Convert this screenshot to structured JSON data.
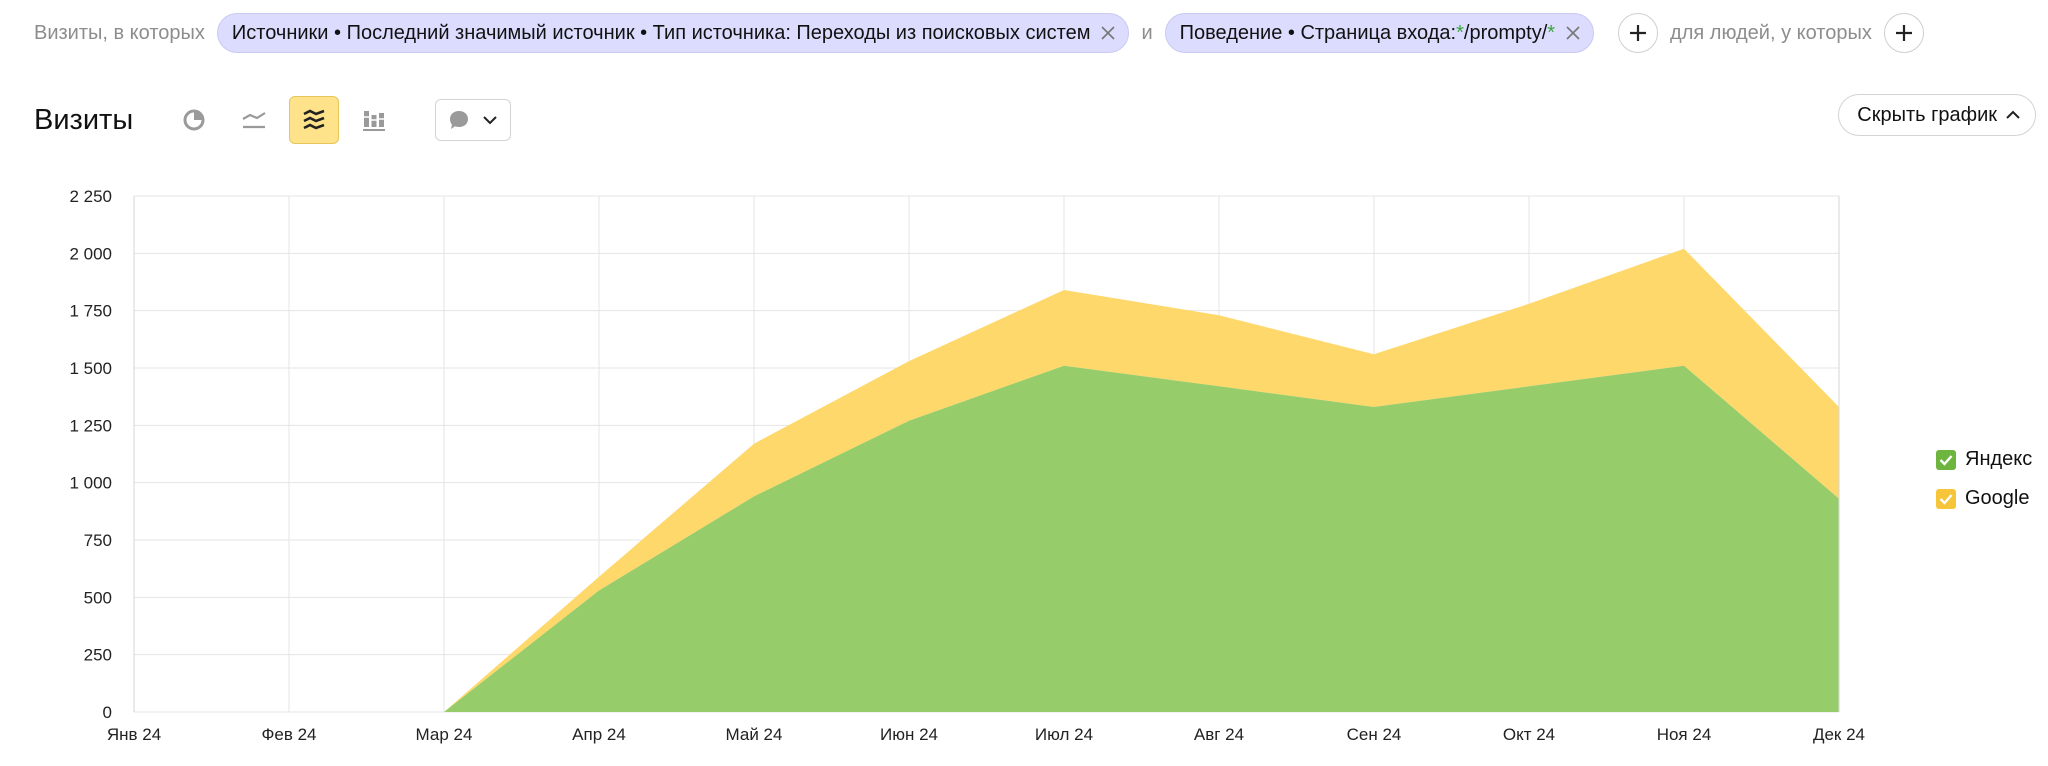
{
  "filters": {
    "prefix": "Визиты, в которых",
    "chip1_text": "Источники • Последний значимый источник • Тип источника: Переходы из поисковых систем",
    "joiner": "и",
    "chip2_prefix": "Поведение • Страница входа: ",
    "chip2_star1": "*",
    "chip2_path": "/prompty/",
    "chip2_star2": "*",
    "people_label": "для людей, у которых"
  },
  "toolbar": {
    "title": "Визиты",
    "hide_chart_label": "Скрыть график"
  },
  "colors": {
    "yandex": "#96cc69",
    "google": "#ffd86b",
    "yandex_check": "#6db53e",
    "google_check": "#f6c53a",
    "grid": "#e5e5e5"
  },
  "chart_data": {
    "type": "area",
    "stacked": true,
    "categories": [
      "Янв 24",
      "Фев 24",
      "Мар 24",
      "Апр 24",
      "Май 24",
      "Июн 24",
      "Июл 24",
      "Авг 24",
      "Сен 24",
      "Окт 24",
      "Ноя 24",
      "Дек 24"
    ],
    "series": [
      {
        "name": "Яндекс",
        "values": [
          0,
          0,
          0,
          530,
          940,
          1270,
          1510,
          1420,
          1330,
          1420,
          1510,
          930
        ]
      },
      {
        "name": "Google",
        "values": [
          0,
          0,
          0,
          60,
          230,
          260,
          330,
          310,
          230,
          360,
          510,
          400
        ]
      }
    ],
    "ylim": [
      0,
      2250
    ],
    "yticks": [
      0,
      250,
      500,
      750,
      1000,
      1250,
      1500,
      1750,
      2000,
      2250
    ],
    "ytick_labels": [
      "0",
      "250",
      "500",
      "750",
      "1 000",
      "1 250",
      "1 500",
      "1 750",
      "2 000",
      "2 250"
    ],
    "grid": true,
    "legend": "right"
  }
}
